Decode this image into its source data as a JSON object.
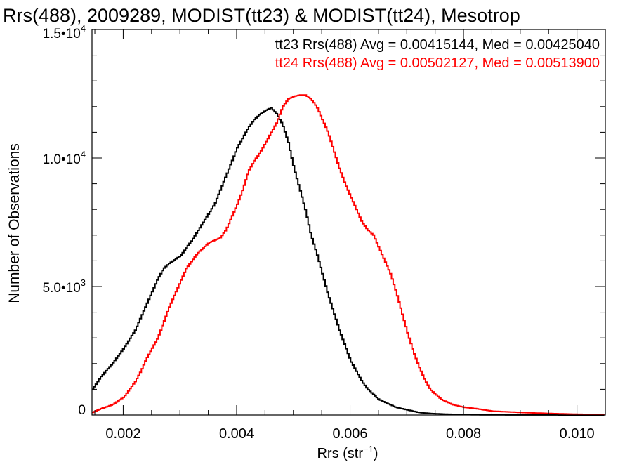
{
  "chart_data": {
    "type": "line",
    "title": "Rrs(488), 2009289, MODIST(tt23) & MODIST(tt24), Mesotrop",
    "xlabel": "Rrs (str",
    "xlabel_sup": "−1",
    "xlabel_close": ")",
    "ylabel": "Number of Observations",
    "xlim": [
      0.00145,
      0.0105
    ],
    "ylim": [
      0,
      15000
    ],
    "x_ticks": [
      {
        "value": 0.002,
        "label": "0.002"
      },
      {
        "value": 0.004,
        "label": "0.004"
      },
      {
        "value": 0.006,
        "label": "0.006"
      },
      {
        "value": 0.008,
        "label": "0.008"
      },
      {
        "value": 0.01,
        "label": "0.010"
      }
    ],
    "y_ticks": [
      {
        "value": 0,
        "mant": "0",
        "exp": ""
      },
      {
        "value": 5000,
        "mant": "5.0•10",
        "exp": "3"
      },
      {
        "value": 10000,
        "mant": "1.0•10",
        "exp": "4"
      },
      {
        "value": 15000,
        "mant": "1.5•10",
        "exp": "4"
      }
    ],
    "grid": false,
    "legend_position": "top-right",
    "annotations": [
      "tt23 Rrs(488) Avg = 0.00415144, Med = 0.00425040",
      "tt24 Rrs(488) Avg = 0.00502127, Med = 0.00513900"
    ],
    "series": [
      {
        "color": "#000000",
        "x": [
          0.00145,
          0.0016,
          0.0018,
          0.002,
          0.0022,
          0.0024,
          0.0026,
          0.0027,
          0.0028,
          0.003,
          0.0031,
          0.0032,
          0.0034,
          0.0036,
          0.0038,
          0.004,
          0.0042,
          0.0043,
          0.0044,
          0.0045,
          0.0046,
          0.0047,
          0.0048,
          0.0049,
          0.005,
          0.0051,
          0.0052,
          0.0053,
          0.0054,
          0.0055,
          0.0056,
          0.0057,
          0.0058,
          0.0059,
          0.006,
          0.0061,
          0.0062,
          0.0063,
          0.0064,
          0.0065,
          0.0066,
          0.0067,
          0.0068,
          0.0069,
          0.007,
          0.0071,
          0.0072,
          0.0074,
          0.0076,
          0.0078,
          0.008,
          0.0085,
          0.009,
          0.0095,
          0.01,
          0.0105
        ],
        "y": [
          1000,
          1500,
          2000,
          2600,
          3300,
          4300,
          5300,
          5700,
          5900,
          6200,
          6500,
          6800,
          7500,
          8200,
          9300,
          10400,
          11200,
          11500,
          11700,
          11850,
          11950,
          11700,
          11300,
          10600,
          9600,
          8800,
          8000,
          7000,
          6300,
          5500,
          4700,
          4000,
          3300,
          2700,
          2100,
          1700,
          1300,
          1000,
          800,
          600,
          500,
          400,
          300,
          250,
          200,
          150,
          100,
          60,
          40,
          25,
          15,
          5,
          3,
          2,
          0,
          0
        ]
      },
      {
        "color": "#ff0000",
        "x": [
          0.00145,
          0.0016,
          0.0018,
          0.002,
          0.0021,
          0.0022,
          0.0023,
          0.0024,
          0.0025,
          0.0026,
          0.0027,
          0.0028,
          0.003,
          0.0031,
          0.0032,
          0.0033,
          0.0034,
          0.0035,
          0.0036,
          0.0037,
          0.0038,
          0.0039,
          0.004,
          0.0041,
          0.0042,
          0.0043,
          0.0044,
          0.0045,
          0.0046,
          0.0047,
          0.0048,
          0.0049,
          0.005,
          0.0051,
          0.0052,
          0.0053,
          0.0054,
          0.0055,
          0.0056,
          0.0057,
          0.0058,
          0.0059,
          0.006,
          0.0061,
          0.0062,
          0.0063,
          0.0064,
          0.0065,
          0.0066,
          0.0067,
          0.0068,
          0.0069,
          0.007,
          0.0071,
          0.0072,
          0.0073,
          0.0074,
          0.0076,
          0.0078,
          0.008,
          0.0082,
          0.0085,
          0.009,
          0.0095,
          0.01,
          0.0105
        ],
        "y": [
          100,
          250,
          400,
          700,
          1000,
          1300,
          1700,
          2200,
          2600,
          3000,
          3600,
          4200,
          5200,
          5700,
          6000,
          6300,
          6500,
          6700,
          6800,
          6900,
          7200,
          7700,
          8200,
          8800,
          9500,
          9900,
          10200,
          10600,
          11000,
          11400,
          12000,
          12300,
          12400,
          12450,
          12450,
          12300,
          12000,
          11500,
          11000,
          10300,
          9600,
          9000,
          8500,
          8000,
          7500,
          7200,
          7000,
          6500,
          6000,
          5500,
          4800,
          4000,
          3200,
          2500,
          1900,
          1400,
          1000,
          600,
          400,
          300,
          250,
          150,
          100,
          60,
          30,
          20
        ]
      }
    ]
  }
}
